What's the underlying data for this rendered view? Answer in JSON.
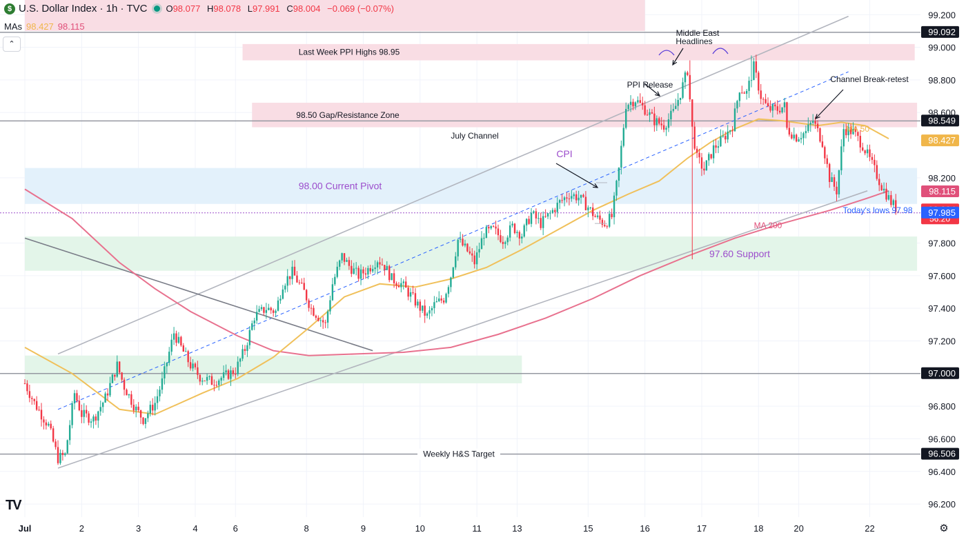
{
  "header": {
    "symbol_badge": "$",
    "title": "U.S. Dollar Index · 1h · TVC",
    "o_label": "O",
    "o_value": "98.077",
    "h_label": "H",
    "h_value": "98.078",
    "l_label": "L",
    "l_value": "97.991",
    "c_label": "C",
    "c_value": "98.004",
    "change": "−0.069 (−0.07%)"
  },
  "mas_legend": {
    "label": "MAs",
    "ma50": "98.427",
    "ma200": "98.115"
  },
  "collapse_icon": "chevron-up-icon",
  "colors": {
    "up": "#22ab94",
    "down": "#f23645",
    "ma50": "#f0c05a",
    "ma200": "#e8718e",
    "pink_zone": "#f9dde4",
    "blue_zone": "#e3f1fb",
    "green_zone": "#e3f5e9"
  },
  "chart_data": {
    "type": "candlestick",
    "title": "U.S. Dollar Index · 1h · TVC",
    "ylim": [
      96.12,
      99.29
    ],
    "y_ticks": [
      "99.200",
      "99.000",
      "98.800",
      "98.600",
      "98.200",
      "97.800",
      "97.600",
      "97.400",
      "97.200",
      "96.800",
      "96.600",
      "96.400",
      "96.200"
    ],
    "x_ticks": [
      {
        "label": "Jul",
        "bar": 0
      },
      {
        "label": "2",
        "bar": 24
      },
      {
        "label": "3",
        "bar": 48
      },
      {
        "label": "4",
        "bar": 72
      },
      {
        "label": "6",
        "bar": 89
      },
      {
        "label": "8",
        "bar": 119
      },
      {
        "label": "9",
        "bar": 143
      },
      {
        "label": "10",
        "bar": 167
      },
      {
        "label": "11",
        "bar": 191
      },
      {
        "label": "13",
        "bar": 208
      },
      {
        "label": "15",
        "bar": 238
      },
      {
        "label": "16",
        "bar": 262
      },
      {
        "label": "17",
        "bar": 286
      },
      {
        "label": "18",
        "bar": 310
      },
      {
        "label": "20",
        "bar": 327
      },
      {
        "label": "22",
        "bar": 357
      }
    ],
    "bar_count": 346,
    "price_path": [
      [
        0,
        96.94
      ],
      [
        4,
        96.82
      ],
      [
        10,
        96.68
      ],
      [
        14,
        96.48
      ],
      [
        17,
        96.5
      ],
      [
        21,
        96.88
      ],
      [
        24,
        96.75
      ],
      [
        29,
        96.72
      ],
      [
        34,
        96.85
      ],
      [
        39,
        97.05
      ],
      [
        42,
        96.92
      ],
      [
        47,
        96.78
      ],
      [
        50,
        96.72
      ],
      [
        55,
        96.82
      ],
      [
        58,
        96.95
      ],
      [
        63,
        97.25
      ],
      [
        66,
        97.16
      ],
      [
        70,
        97.05
      ],
      [
        74,
        96.98
      ],
      [
        79,
        96.95
      ],
      [
        84,
        96.98
      ],
      [
        89,
        97.02
      ],
      [
        93,
        97.15
      ],
      [
        97,
        97.35
      ],
      [
        102,
        97.4
      ],
      [
        106,
        97.38
      ],
      [
        109,
        97.55
      ],
      [
        113,
        97.62
      ],
      [
        118,
        97.5
      ],
      [
        121,
        97.4
      ],
      [
        124,
        97.35
      ],
      [
        127,
        97.3
      ],
      [
        130,
        97.55
      ],
      [
        134,
        97.72
      ],
      [
        137,
        97.66
      ],
      [
        141,
        97.6
      ],
      [
        145,
        97.64
      ],
      [
        149,
        97.7
      ],
      [
        152,
        97.66
      ],
      [
        155,
        97.58
      ],
      [
        159,
        97.55
      ],
      [
        163,
        97.48
      ],
      [
        166,
        97.42
      ],
      [
        170,
        97.35
      ],
      [
        173,
        97.42
      ],
      [
        177,
        97.46
      ],
      [
        180,
        97.6
      ],
      [
        183,
        97.82
      ],
      [
        187,
        97.75
      ],
      [
        190,
        97.68
      ],
      [
        194,
        97.86
      ],
      [
        198,
        97.88
      ],
      [
        202,
        97.82
      ],
      [
        206,
        97.9
      ],
      [
        210,
        97.85
      ],
      [
        214,
        97.98
      ],
      [
        218,
        97.92
      ],
      [
        222,
        97.98
      ],
      [
        226,
        98.05
      ],
      [
        230,
        98.1
      ],
      [
        234,
        98.08
      ],
      [
        238,
        98.02
      ],
      [
        241,
        97.96
      ],
      [
        245,
        97.92
      ],
      [
        248,
        97.96
      ],
      [
        251,
        98.25
      ],
      [
        254,
        98.65
      ],
      [
        258,
        98.68
      ],
      [
        262,
        98.62
      ],
      [
        266,
        98.55
      ],
      [
        270,
        98.52
      ],
      [
        274,
        98.6
      ],
      [
        277,
        98.72
      ],
      [
        280,
        98.86
      ],
      [
        282,
        98.5
      ],
      [
        284,
        98.32
      ],
      [
        287,
        98.25
      ],
      [
        291,
        98.38
      ],
      [
        295,
        98.44
      ],
      [
        299,
        98.52
      ],
      [
        302,
        98.75
      ],
      [
        305,
        98.72
      ],
      [
        308,
        98.88
      ],
      [
        311,
        98.7
      ],
      [
        314,
        98.62
      ],
      [
        318,
        98.62
      ],
      [
        321,
        98.64
      ],
      [
        322,
        98.5
      ],
      [
        326,
        98.45
      ],
      [
        330,
        98.48
      ],
      [
        333,
        98.55
      ],
      [
        337,
        98.42
      ],
      [
        340,
        98.2
      ],
      [
        343,
        98.12
      ],
      [
        346,
        98.5
      ],
      [
        350,
        98.48
      ],
      [
        354,
        98.4
      ],
      [
        358,
        98.28
      ],
      [
        362,
        98.15
      ],
      [
        366,
        98.05
      ],
      [
        369,
        98.0
      ]
    ],
    "ma50_path": [
      [
        0,
        97.16
      ],
      [
        20,
        97.0
      ],
      [
        40,
        96.78
      ],
      [
        55,
        96.75
      ],
      [
        75,
        96.88
      ],
      [
        90,
        96.97
      ],
      [
        105,
        97.1
      ],
      [
        120,
        97.28
      ],
      [
        135,
        97.47
      ],
      [
        150,
        97.55
      ],
      [
        165,
        97.53
      ],
      [
        180,
        97.58
      ],
      [
        195,
        97.65
      ],
      [
        210,
        97.76
      ],
      [
        225,
        97.88
      ],
      [
        240,
        98.0
      ],
      [
        255,
        98.1
      ],
      [
        268,
        98.18
      ],
      [
        280,
        98.32
      ],
      [
        290,
        98.42
      ],
      [
        300,
        98.5
      ],
      [
        310,
        98.56
      ],
      [
        320,
        98.55
      ],
      [
        335,
        98.52
      ],
      [
        345,
        98.54
      ],
      [
        355,
        98.52
      ],
      [
        365,
        98.44
      ]
    ],
    "ma200_path": [
      [
        0,
        98.13
      ],
      [
        20,
        97.95
      ],
      [
        40,
        97.68
      ],
      [
        55,
        97.52
      ],
      [
        70,
        97.38
      ],
      [
        90,
        97.23
      ],
      [
        105,
        97.14
      ],
      [
        120,
        97.11
      ],
      [
        140,
        97.12
      ],
      [
        160,
        97.13
      ],
      [
        180,
        97.16
      ],
      [
        200,
        97.24
      ],
      [
        220,
        97.34
      ],
      [
        240,
        97.46
      ],
      [
        260,
        97.6
      ],
      [
        280,
        97.72
      ],
      [
        300,
        97.83
      ],
      [
        320,
        97.92
      ],
      [
        340,
        98.0
      ],
      [
        355,
        98.07
      ],
      [
        365,
        98.12
      ]
    ],
    "zones": [
      {
        "label": "Last Week PPI Highs 98.95",
        "bar_start": 92,
        "bar_end": 376,
        "y_top": 99.02,
        "y_bottom": 98.92,
        "fill": "pink"
      },
      {
        "label": "98.50 Gap/Resistance Zone",
        "bar_start": 96,
        "bar_end": 377,
        "y_top": 98.66,
        "y_bottom": 98.51,
        "fill": "pink"
      },
      {
        "label": "98.00 Current Pivot",
        "bar_start": 0,
        "bar_end": 377,
        "y_top": 98.26,
        "y_bottom": 98.04,
        "fill": "blue"
      },
      {
        "label": "97.60 Support",
        "bar_start": 0,
        "bar_end": 377,
        "y_top": 97.84,
        "y_bottom": 97.63,
        "fill": "green"
      },
      {
        "label": "",
        "bar_start": 0,
        "bar_end": 210,
        "y_top": 97.11,
        "y_bottom": 96.94,
        "fill": "green"
      },
      {
        "label": "",
        "bar_start": 0,
        "bar_end": 262,
        "y_top": 99.29,
        "y_bottom": 99.1,
        "fill": "pink"
      }
    ],
    "horizontal_lines": [
      {
        "price": 99.092,
        "label": "99.092",
        "style": "dark"
      },
      {
        "price": 98.549,
        "label": "98.549",
        "style": "dark"
      },
      {
        "price": 97.0,
        "label": "97.000",
        "style": "dark"
      },
      {
        "price": 96.506,
        "label": "96.506",
        "style": "dark",
        "caption": "Weekly H&S Target"
      }
    ],
    "price_tags": [
      {
        "price": 98.427,
        "label": "98.427",
        "color": "#f0b64a"
      },
      {
        "price": 98.115,
        "label": "98.115",
        "color": "#e0507a"
      },
      {
        "price": 98.004,
        "label": "98.004",
        "sub": "56:20",
        "color": "#f23645"
      },
      {
        "price": 97.985,
        "label": "97.985",
        "color": "#2962ff"
      }
    ],
    "trendlines": [
      {
        "name": "channel-upper",
        "from": [
          14,
          97.12
        ],
        "to": [
          348,
          99.19
        ],
        "style": "gray"
      },
      {
        "name": "channel-lower",
        "from": [
          14,
          96.42
        ],
        "to": [
          356,
          98.12
        ],
        "style": "gray"
      },
      {
        "name": "channel-mid",
        "from": [
          14,
          96.78
        ],
        "to": [
          348,
          98.85
        ],
        "style": "blue-dashed"
      },
      {
        "name": "falling-line",
        "from": [
          0,
          97.83
        ],
        "to": [
          147,
          97.14
        ],
        "style": "dark-gray"
      }
    ],
    "annotations": [
      {
        "text": "July Channel",
        "bar": 202,
        "price": 98.42,
        "color": "#131722"
      },
      {
        "text": "CPI",
        "bar": 240,
        "price": 98.3,
        "color": "#9c4dcc"
      },
      {
        "text": "PPI Release",
        "bar": 276,
        "price": 98.79,
        "color": "#131722"
      },
      {
        "text": "Middle East",
        "bar": 295,
        "price": 99.06,
        "color": "#131722"
      },
      {
        "text": "Headlines",
        "bar": 295,
        "price": 98.98,
        "color": "#131722"
      },
      {
        "text": "Channel Break-retest",
        "bar": 364,
        "price": 98.81,
        "color": "#131722"
      },
      {
        "text": "MA 50",
        "bar": 363,
        "price": 98.47,
        "color": "#f0b64a"
      },
      {
        "text": "MA 200",
        "bar": 325,
        "price": 97.88,
        "color": "#e0507a"
      },
      {
        "text": "Today's lows 97.98",
        "bar": 364,
        "price": 97.97,
        "color": "#2962ff"
      }
    ]
  }
}
